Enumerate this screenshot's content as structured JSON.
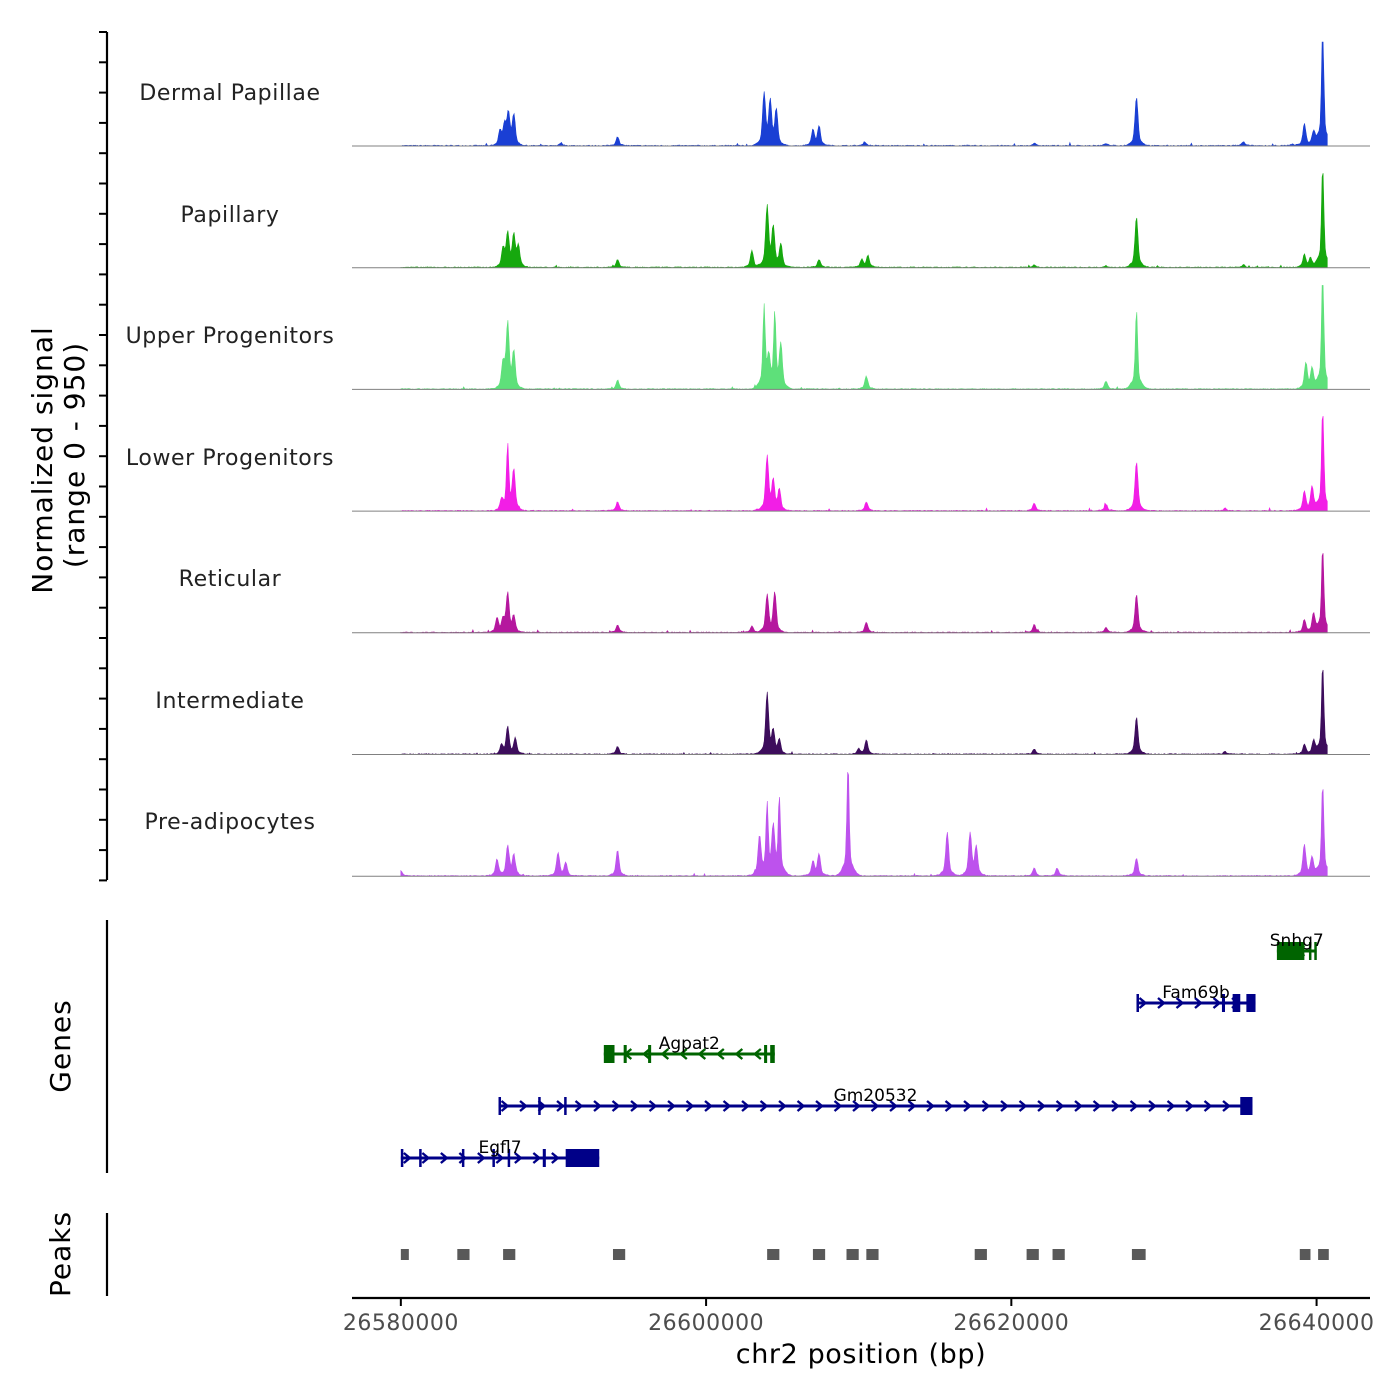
{
  "chart_data": {
    "type": "area",
    "title": "",
    "signal_axis_label": "Normalized signal",
    "signal_axis_sublabel": "(range 0 - 950)",
    "ylim": [
      0,
      950
    ],
    "genes_label": "Genes",
    "peaks_label": "Peaks",
    "xlabel": "chr2 position (bp)",
    "xlim": [
      26576800,
      26643500
    ],
    "x_ticks": [
      {
        "value": 26580000,
        "label": "26580000"
      },
      {
        "value": 26600000,
        "label": "26600000"
      },
      {
        "value": 26620000,
        "label": "26620000"
      },
      {
        "value": 26640000,
        "label": "26640000"
      }
    ],
    "series": [
      {
        "name": "Dermal Papillae",
        "color": "#1a3fd4",
        "peaks": [
          [
            26586500,
            110
          ],
          [
            26586800,
            150
          ],
          [
            26587050,
            240
          ],
          [
            26587400,
            230
          ],
          [
            26590500,
            22
          ],
          [
            26594200,
            70
          ],
          [
            26603800,
            400
          ],
          [
            26604200,
            330
          ],
          [
            26604600,
            270
          ],
          [
            26607000,
            120
          ],
          [
            26607400,
            150
          ],
          [
            26610400,
            30
          ],
          [
            26621500,
            18
          ],
          [
            26626200,
            18
          ],
          [
            26628200,
            380
          ],
          [
            26635200,
            30
          ],
          [
            26638400,
            12
          ],
          [
            26639200,
            170
          ],
          [
            26639800,
            100
          ],
          [
            26640400,
            950
          ]
        ]
      },
      {
        "name": "Papillary",
        "color": "#16a80e",
        "peaks": [
          [
            26586700,
            140
          ],
          [
            26587000,
            260
          ],
          [
            26587400,
            240
          ],
          [
            26587700,
            160
          ],
          [
            26594200,
            60
          ],
          [
            26603000,
            130
          ],
          [
            26604000,
            470
          ],
          [
            26604400,
            300
          ],
          [
            26604900,
            180
          ],
          [
            26607400,
            60
          ],
          [
            26610200,
            60
          ],
          [
            26610600,
            90
          ],
          [
            26621500,
            20
          ],
          [
            26626200,
            12
          ],
          [
            26628200,
            390
          ],
          [
            26635200,
            20
          ],
          [
            26639200,
            100
          ],
          [
            26639600,
            70
          ],
          [
            26640400,
            790
          ]
        ]
      },
      {
        "name": "Upper Progenitors",
        "color": "#5ee07a",
        "peaks": [
          [
            26586700,
            190
          ],
          [
            26587000,
            500
          ],
          [
            26587400,
            280
          ],
          [
            26594200,
            70
          ],
          [
            26603800,
            640
          ],
          [
            26604100,
            200
          ],
          [
            26604500,
            580
          ],
          [
            26604900,
            330
          ],
          [
            26610500,
            100
          ],
          [
            26626200,
            60
          ],
          [
            26628200,
            620
          ],
          [
            26639300,
            200
          ],
          [
            26639700,
            150
          ],
          [
            26640400,
            950
          ]
        ]
      },
      {
        "name": "Lower Progenitors",
        "color": "#f21ee6",
        "peaks": [
          [
            26586600,
            70
          ],
          [
            26587000,
            510
          ],
          [
            26587400,
            300
          ],
          [
            26594200,
            70
          ],
          [
            26604000,
            420
          ],
          [
            26604400,
            220
          ],
          [
            26604800,
            160
          ],
          [
            26610500,
            70
          ],
          [
            26621500,
            60
          ],
          [
            26626200,
            50
          ],
          [
            26628200,
            380
          ],
          [
            26634000,
            20
          ],
          [
            26639200,
            150
          ],
          [
            26639700,
            180
          ],
          [
            26640400,
            790
          ]
        ]
      },
      {
        "name": "Reticular",
        "color": "#b5179e",
        "peaks": [
          [
            26586300,
            110
          ],
          [
            26586700,
            90
          ],
          [
            26587000,
            300
          ],
          [
            26587400,
            120
          ],
          [
            26594200,
            60
          ],
          [
            26603000,
            50
          ],
          [
            26604000,
            290
          ],
          [
            26604500,
            310
          ],
          [
            26610500,
            80
          ],
          [
            26621500,
            60
          ],
          [
            26626200,
            40
          ],
          [
            26628200,
            300
          ],
          [
            26639200,
            100
          ],
          [
            26639800,
            140
          ],
          [
            26640400,
            660
          ]
        ]
      },
      {
        "name": "Intermediate",
        "color": "#3d0d5c",
        "peaks": [
          [
            26586600,
            70
          ],
          [
            26587000,
            210
          ],
          [
            26587500,
            120
          ],
          [
            26594200,
            60
          ],
          [
            26604000,
            470
          ],
          [
            26604400,
            170
          ],
          [
            26604800,
            110
          ],
          [
            26610000,
            40
          ],
          [
            26610500,
            110
          ],
          [
            26621500,
            40
          ],
          [
            26628200,
            290
          ],
          [
            26634000,
            20
          ],
          [
            26639200,
            80
          ],
          [
            26639800,
            100
          ],
          [
            26640400,
            700
          ]
        ]
      },
      {
        "name": "Pre-adipocytes",
        "color": "#bd52ed",
        "peaks": [
          [
            26580000,
            40
          ],
          [
            26586300,
            130
          ],
          [
            26587000,
            230
          ],
          [
            26587400,
            160
          ],
          [
            26590300,
            180
          ],
          [
            26590800,
            100
          ],
          [
            26594200,
            200
          ],
          [
            26603500,
            300
          ],
          [
            26604000,
            550
          ],
          [
            26604400,
            340
          ],
          [
            26604800,
            610
          ],
          [
            26607000,
            110
          ],
          [
            26607400,
            170
          ],
          [
            26609300,
            890
          ],
          [
            26615800,
            340
          ],
          [
            26617300,
            330
          ],
          [
            26617700,
            220
          ],
          [
            26621500,
            60
          ],
          [
            26623000,
            60
          ],
          [
            26628200,
            140
          ],
          [
            26639200,
            240
          ],
          [
            26639700,
            140
          ],
          [
            26640400,
            720
          ]
        ]
      }
    ],
    "genes": [
      {
        "name": "Snhg7",
        "color": "#006400",
        "strand": "-",
        "start": 26637400,
        "end": 26640000,
        "row": 0,
        "exons": [
          [
            26637400,
            26639200
          ],
          [
            26639500,
            26639650
          ],
          [
            26639850,
            26639950
          ]
        ]
      },
      {
        "name": "Fam69b",
        "color": "#000088",
        "strand": "+",
        "start": 26628200,
        "end": 26636000,
        "row": 1,
        "exons": [
          [
            26628200,
            26628300
          ],
          [
            26633800,
            26634000
          ],
          [
            26634500,
            26635000
          ],
          [
            26635400,
            26636000
          ]
        ]
      },
      {
        "name": "Agpat2",
        "color": "#006400",
        "strand": "-",
        "start": 26593300,
        "end": 26604500,
        "row": 2,
        "exons": [
          [
            26593300,
            26594000
          ],
          [
            26594600,
            26594800
          ],
          [
            26596200,
            26596400
          ],
          [
            26603800,
            26604000
          ],
          [
            26604200,
            26604500
          ]
        ]
      },
      {
        "name": "Gm20532",
        "color": "#000088",
        "strand": "+",
        "start": 26586400,
        "end": 26635800,
        "row": 3,
        "exons": [
          [
            26586400,
            26586500
          ],
          [
            26589000,
            26589100
          ],
          [
            26590700,
            26590800
          ],
          [
            26635000,
            26635800
          ]
        ]
      },
      {
        "name": "Egfl7",
        "color": "#000088",
        "strand": "+",
        "start": 26580000,
        "end": 26593000,
        "row": 4,
        "exons": [
          [
            26580000,
            26580100
          ],
          [
            26581200,
            26581300
          ],
          [
            26584000,
            26584100
          ],
          [
            26586000,
            26586100
          ],
          [
            26587000,
            26587100
          ],
          [
            26589300,
            26589500
          ],
          [
            26590800,
            26593000
          ]
        ]
      }
    ],
    "peak_regions": [
      [
        26580000,
        26580500
      ],
      [
        26583700,
        26584500
      ],
      [
        26586700,
        26587500
      ],
      [
        26593900,
        26594700
      ],
      [
        26604000,
        26604800
      ],
      [
        26607000,
        26607800
      ],
      [
        26609200,
        26610000
      ],
      [
        26610500,
        26611300
      ],
      [
        26617600,
        26618400
      ],
      [
        26621000,
        26621800
      ],
      [
        26622700,
        26623500
      ],
      [
        26627900,
        26628800
      ],
      [
        26638900,
        26639600
      ],
      [
        26640100,
        26640800
      ]
    ]
  }
}
